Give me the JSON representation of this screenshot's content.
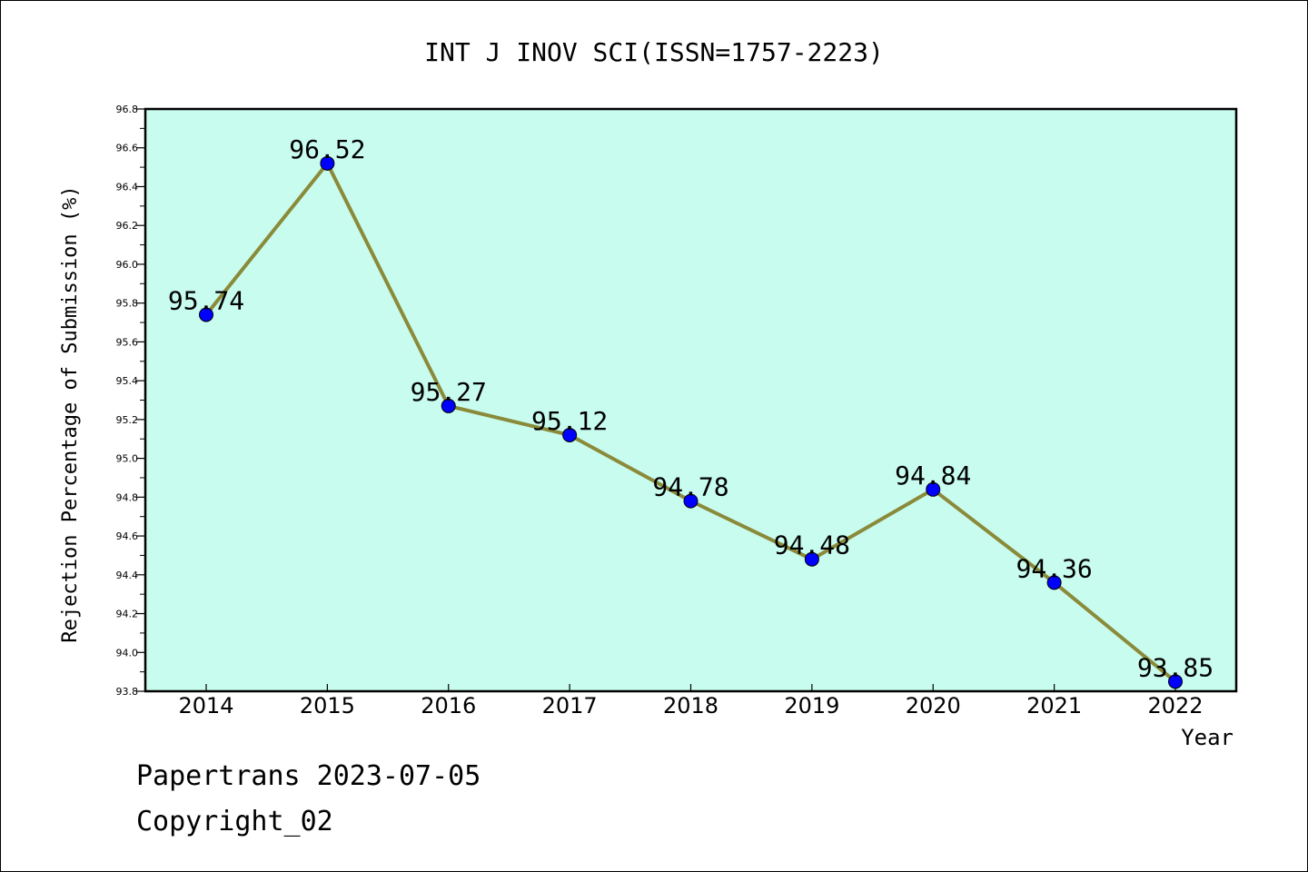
{
  "chart_data": {
    "type": "line",
    "title": "INT J INOV SCI(ISSN=1757-2223)",
    "xlabel": "Year",
    "ylabel": "Rejection Percentage of Submission (%)",
    "categories": [
      "2014",
      "2015",
      "2016",
      "2017",
      "2018",
      "2019",
      "2020",
      "2021",
      "2022"
    ],
    "values": [
      95.74,
      96.52,
      95.27,
      95.12,
      94.78,
      94.48,
      94.84,
      94.36,
      93.85
    ],
    "data_labels": [
      "95.74",
      "96.52",
      "95.27",
      "95.12",
      "94.78",
      "94.48",
      "94.84",
      "94.36",
      "93.85"
    ],
    "ylim": [
      93.8,
      96.8
    ],
    "yticks": [
      "93.8",
      "94.0",
      "94.2",
      "94.4",
      "94.6",
      "94.8",
      "95.0",
      "95.2",
      "95.4",
      "95.6",
      "95.8",
      "96.0",
      "96.2",
      "96.4",
      "96.6",
      "96.8"
    ],
    "grid": false,
    "colors": {
      "plot_background": "#c8fcee",
      "line": "#8a8a3a",
      "marker": "#0000ff"
    }
  },
  "footer": {
    "line1": "Papertrans 2023-07-05",
    "line2": "Copyright_02"
  }
}
